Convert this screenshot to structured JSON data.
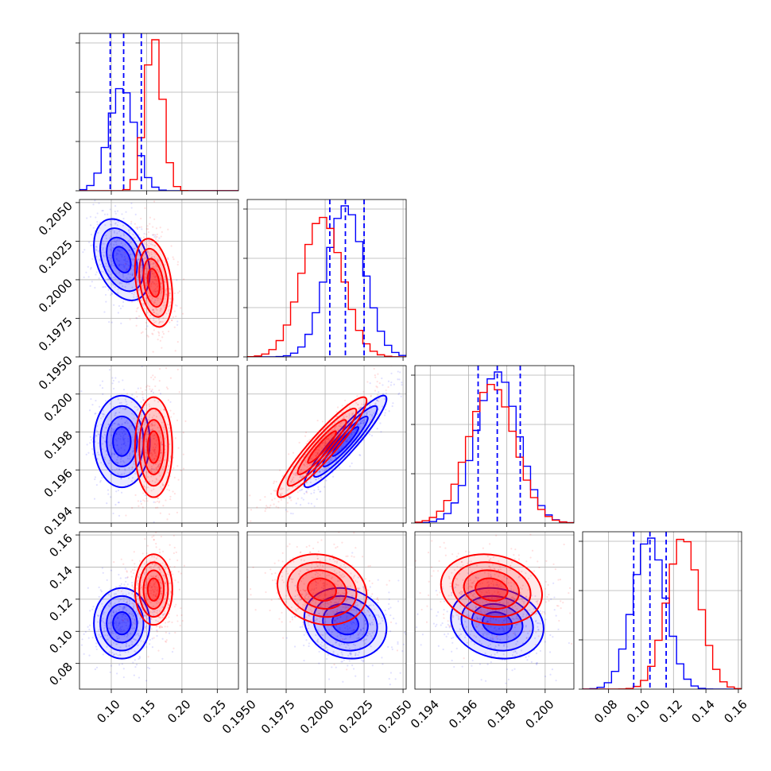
{
  "chart_data": {
    "type": "corner",
    "parameters": [
      {
        "ticks": [
          0.1,
          0.15,
          0.2,
          0.25
        ],
        "tick_labels": [
          "0.10",
          "0.15",
          "0.20",
          "0.25"
        ],
        "range": [
          0.055,
          0.28
        ]
      },
      {
        "ticks": [
          0.195,
          0.1975,
          0.2,
          0.2025,
          0.205
        ],
        "tick_labels": [
          "0.1950",
          "0.1975",
          "0.2000",
          "0.2025",
          "0.2050"
        ],
        "range": [
          0.195,
          0.2052
        ]
      },
      {
        "ticks": [
          0.194,
          0.196,
          0.198,
          0.2
        ],
        "tick_labels": [
          "0.194",
          "0.196",
          "0.198",
          "0.200"
        ],
        "range": [
          0.1932,
          0.2015
        ]
      },
      {
        "ticks": [
          0.08,
          0.1,
          0.12,
          0.14,
          0.16
        ],
        "tick_labels": [
          "0.08",
          "0.10",
          "0.12",
          "0.14",
          "0.16"
        ],
        "range": [
          0.064,
          0.162
        ]
      }
    ],
    "series": [
      {
        "color": "#0000ff",
        "mean": [
          0.115,
          0.2013,
          0.1975,
          0.105
        ],
        "std": [
          0.018,
          0.0012,
          0.0011,
          0.01
        ],
        "quantile_lines": [
          [
            0.0985,
            0.1175,
            0.1425
          ],
          [
            0.2003,
            0.2013,
            0.2025
          ],
          [
            0.1965,
            0.1975,
            0.1987
          ],
          [
            0.0955,
            0.1055,
            0.1155
          ]
        ],
        "correlations": [
          [
            0,
            1,
            -0.35
          ],
          [
            0,
            2,
            0.0
          ],
          [
            0,
            3,
            0.0
          ],
          [
            1,
            2,
            0.93
          ],
          [
            1,
            3,
            -0.15
          ],
          [
            2,
            3,
            -0.15
          ]
        ]
      },
      {
        "color": "#ff0000",
        "mean": [
          0.16,
          0.1998,
          0.1972,
          0.126
        ],
        "std": [
          0.012,
          0.0013,
          0.0012,
          0.01
        ],
        "quantile_lines": [],
        "correlations": [
          [
            0,
            1,
            -0.3
          ],
          [
            0,
            2,
            0.0
          ],
          [
            0,
            3,
            0.0
          ],
          [
            1,
            2,
            0.93
          ],
          [
            1,
            3,
            -0.15
          ],
          [
            2,
            3,
            -0.15
          ]
        ]
      }
    ],
    "grid": true,
    "legend": "none"
  }
}
